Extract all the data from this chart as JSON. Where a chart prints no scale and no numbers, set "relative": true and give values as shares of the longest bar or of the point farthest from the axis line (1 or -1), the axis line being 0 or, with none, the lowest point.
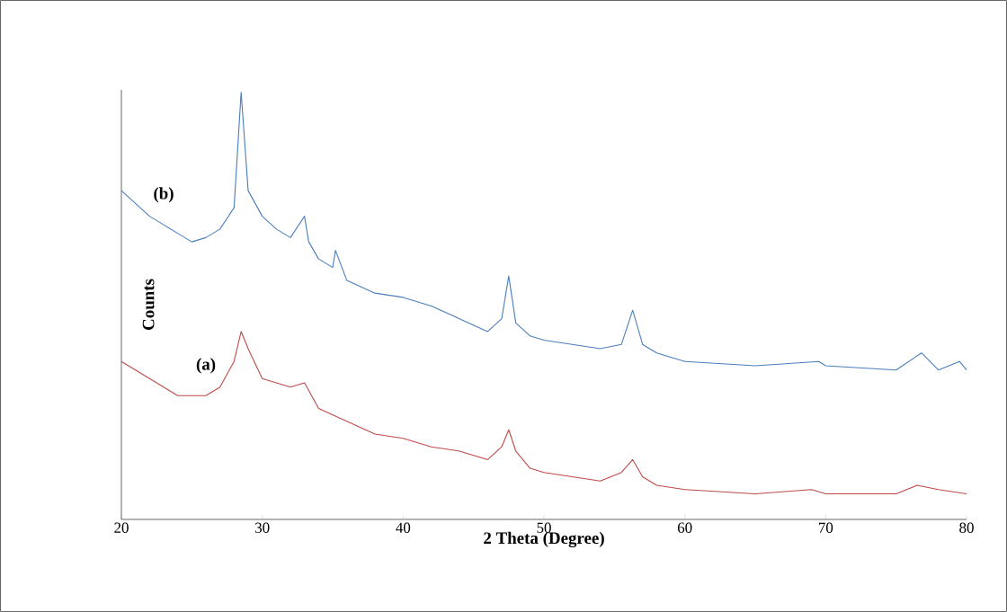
{
  "chart_data": {
    "type": "line",
    "relative": true,
    "xlabel": "2 Theta (Degree)",
    "ylabel": "Counts",
    "xlim": [
      20,
      80
    ],
    "xticks": [
      20,
      30,
      40,
      50,
      60,
      70,
      80
    ],
    "series": [
      {
        "name": "(a)",
        "color": "#be4b48",
        "x": [
          20,
          22,
          24,
          26,
          27,
          28,
          28.5,
          29,
          30,
          32,
          33,
          34,
          36,
          38,
          40,
          42,
          44,
          46,
          47,
          47.5,
          48,
          49,
          50,
          52,
          54,
          55.5,
          56.3,
          57,
          58,
          60,
          65,
          69,
          70,
          75,
          76.5,
          78,
          80
        ],
        "values": [
          0.37,
          0.33,
          0.29,
          0.29,
          0.31,
          0.37,
          0.44,
          0.4,
          0.33,
          0.31,
          0.32,
          0.26,
          0.23,
          0.2,
          0.19,
          0.17,
          0.16,
          0.14,
          0.17,
          0.21,
          0.16,
          0.12,
          0.11,
          0.1,
          0.09,
          0.11,
          0.14,
          0.1,
          0.08,
          0.07,
          0.06,
          0.07,
          0.06,
          0.06,
          0.08,
          0.07,
          0.06
        ]
      },
      {
        "name": "(b)",
        "color": "#4a7ebb",
        "x": [
          20,
          21,
          22,
          23,
          24,
          25,
          26,
          27,
          28,
          28.5,
          29,
          30,
          31,
          32,
          33,
          33.3,
          34,
          35,
          35.2,
          36,
          38,
          40,
          42,
          44,
          46,
          47,
          47.5,
          48,
          49,
          50,
          52,
          54,
          55.5,
          56.3,
          57,
          58,
          60,
          65,
          69.5,
          70,
          75,
          76.8,
          78,
          79.5,
          80
        ],
        "values": [
          0.77,
          0.74,
          0.71,
          0.69,
          0.67,
          0.65,
          0.66,
          0.68,
          0.73,
          1.0,
          0.77,
          0.71,
          0.68,
          0.66,
          0.71,
          0.65,
          0.61,
          0.59,
          0.63,
          0.56,
          0.53,
          0.52,
          0.5,
          0.47,
          0.44,
          0.47,
          0.57,
          0.46,
          0.43,
          0.42,
          0.41,
          0.4,
          0.41,
          0.49,
          0.41,
          0.39,
          0.37,
          0.36,
          0.37,
          0.36,
          0.35,
          0.39,
          0.35,
          0.37,
          0.35
        ]
      }
    ]
  }
}
